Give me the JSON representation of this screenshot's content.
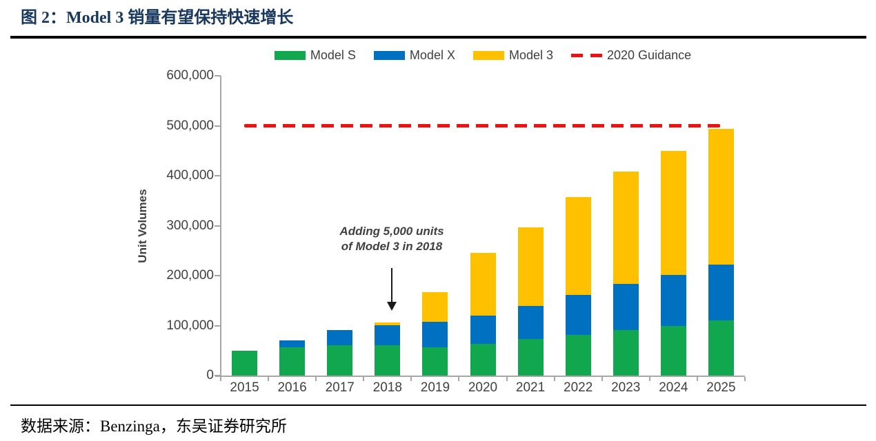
{
  "page": {
    "title": "图 2：Model 3 销量有望保持快速增长",
    "title_color": "#17375E",
    "source": "数据来源：Benzinga，东吴证券研究所"
  },
  "chart_data": {
    "type": "bar",
    "stacked": true,
    "title": "",
    "xlabel": "",
    "ylabel": "Unit Volumes",
    "ylim": [
      0,
      600000
    ],
    "ytick_labels": [
      "0",
      "100,000",
      "200,000",
      "300,000",
      "400,000",
      "500,000",
      "600,000"
    ],
    "grid": false,
    "legend_position": "top",
    "categories": [
      "2015",
      "2016",
      "2017",
      "2018",
      "2019",
      "2020",
      "2021",
      "2022",
      "2023",
      "2024",
      "2025"
    ],
    "series": [
      {
        "name": "Model S",
        "color": "#10A74F",
        "values": [
          50000,
          57000,
          61000,
          61000,
          57000,
          63000,
          73000,
          82000,
          91000,
          100000,
          110000
        ]
      },
      {
        "name": "Model X",
        "color": "#0070C0",
        "values": [
          0,
          14000,
          30000,
          40000,
          51000,
          57000,
          66000,
          79000,
          92000,
          102000,
          112000
        ]
      },
      {
        "name": "Model 3",
        "color": "#FFC000",
        "values": [
          0,
          0,
          0,
          5000,
          59000,
          125000,
          157000,
          196000,
          225000,
          248000,
          272000
        ]
      }
    ],
    "guidance_line": {
      "label": "2020 Guidance",
      "value": 500000,
      "color": "#EE1111",
      "style": "dashed"
    },
    "annotation": {
      "text": "Adding 5,000 units of Model 3 in 2018",
      "target_category": "2018"
    }
  }
}
